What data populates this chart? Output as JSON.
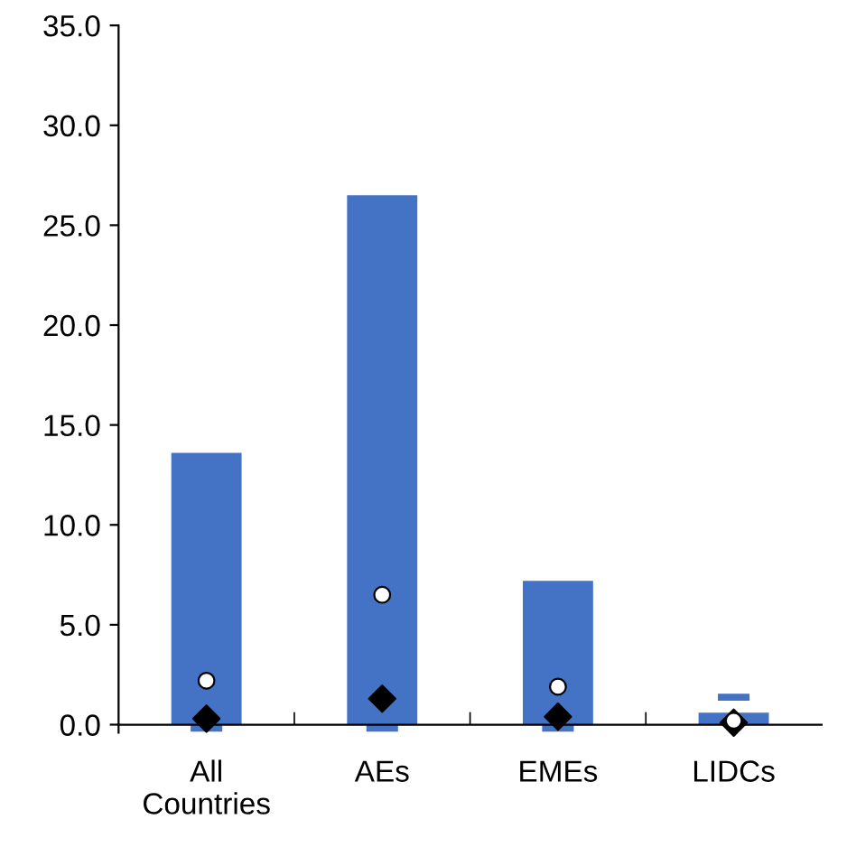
{
  "chart_data": {
    "type": "bar",
    "categories": [
      "All\nCountries",
      "AEs",
      "EMEs",
      "LIDCs"
    ],
    "ylim": [
      -0.4,
      35
    ],
    "yticks": [
      {
        "value": 0,
        "label": "0.0"
      },
      {
        "value": 5,
        "label": "5.0"
      },
      {
        "value": 10,
        "label": "10.0"
      },
      {
        "value": 15,
        "label": "15.0"
      },
      {
        "value": 20,
        "label": "20.0"
      },
      {
        "value": 25,
        "label": "25.0"
      },
      {
        "value": 30,
        "label": "30.0"
      },
      {
        "value": 35,
        "label": "35.0"
      }
    ],
    "grid": false,
    "legend": false,
    "series": [
      {
        "color": "#4472c4",
        "values": [
          13.6,
          26.5,
          7.2,
          0.6
        ]
      },
      {
        "type": "bar",
        "color": "#4472c4",
        "base": [
          -0.35,
          -0.35,
          -0.35,
          1.2
        ],
        "values": [
          0.35,
          0.35,
          0.35,
          0.35
        ]
      },
      {
        "type": "scatter",
        "marker": "diamond",
        "color": "#000000",
        "x": [
          "All\nCountries",
          "AEs",
          "EMEs",
          "LIDCs"
        ],
        "values": [
          0.3,
          1.3,
          0.4,
          0.1
        ]
      },
      {
        "type": "scatter",
        "marker": "circle",
        "color": "#ffffff",
        "x": [
          "All\nCountries",
          "AEs",
          "EMEs",
          "LIDCs"
        ],
        "values": [
          2.2,
          6.5,
          1.9,
          0.2
        ]
      }
    ]
  }
}
